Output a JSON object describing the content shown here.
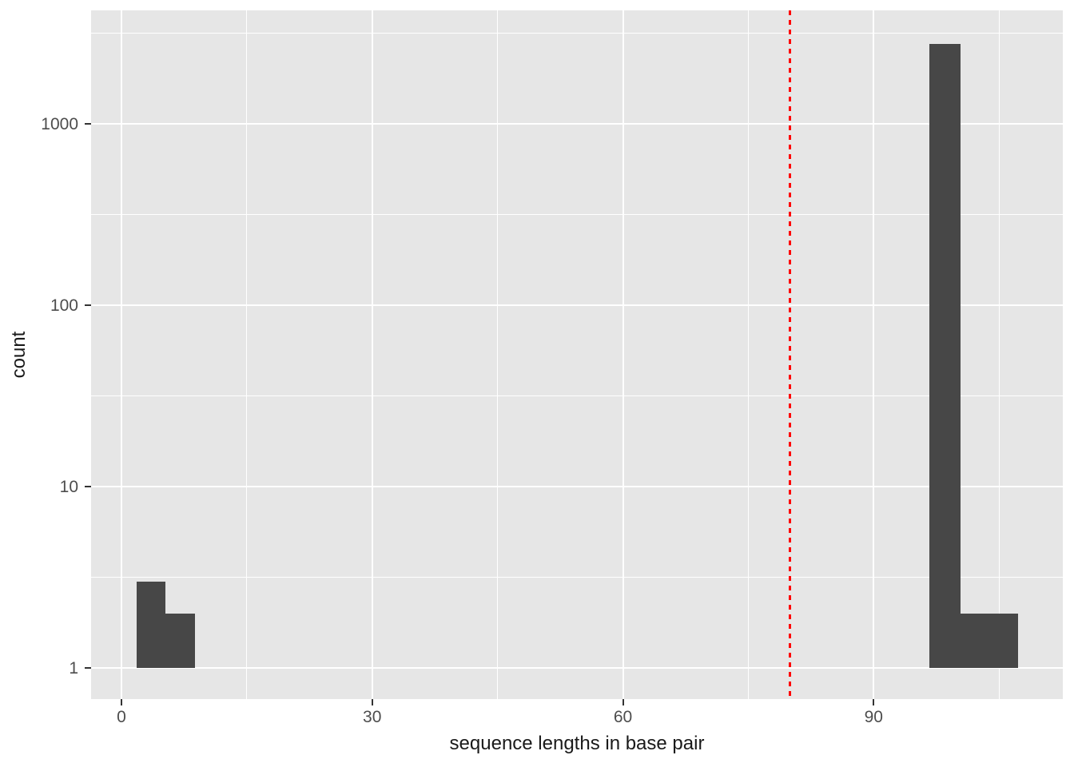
{
  "chart_data": {
    "type": "bar",
    "subtype": "histogram",
    "title": "",
    "xlabel": "sequence lengths in base pair",
    "ylabel": "count",
    "x_axis": {
      "lim": [
        -3.63,
        112.63
      ],
      "ticks": [
        {
          "value": 0,
          "label": "0"
        },
        {
          "value": 30,
          "label": "30"
        },
        {
          "value": 60,
          "label": "60"
        },
        {
          "value": 90,
          "label": "90"
        }
      ],
      "minor_ticks": [
        15,
        45,
        75,
        105
      ]
    },
    "y_axis": {
      "scale": "log10",
      "lim_log10": [
        -0.172,
        3.625
      ],
      "ticks": [
        {
          "value": 1,
          "label": "1"
        },
        {
          "value": 10,
          "label": "10"
        },
        {
          "value": 100,
          "label": "100"
        },
        {
          "value": 1000,
          "label": "1000"
        }
      ],
      "minor_ticks": [
        3.1623,
        31.623,
        316.23,
        3162.3
      ]
    },
    "baseline_count": 1,
    "bars": [
      {
        "x_start": 1.8,
        "x_end": 5.25,
        "count": 3
      },
      {
        "x_start": 5.25,
        "x_end": 8.8,
        "count": 2
      },
      {
        "x_start": 96.7,
        "x_end": 100.35,
        "count": 2750
      },
      {
        "x_start": 100.35,
        "x_end": 107.3,
        "count": 2
      }
    ],
    "vline": {
      "x": 80,
      "style": "dashed",
      "color": "#FF0000"
    },
    "grid": {
      "major": true,
      "minor": true
    },
    "legend": "none",
    "colors": {
      "bar": "#474747",
      "panel_bg": "#E6E6E6",
      "grid": "#FFFFFF",
      "tick_mark": "#333333",
      "tick_label": "#4D4D4D",
      "axis_title": "#1A1A1A",
      "background": "#FFFFFF"
    }
  }
}
